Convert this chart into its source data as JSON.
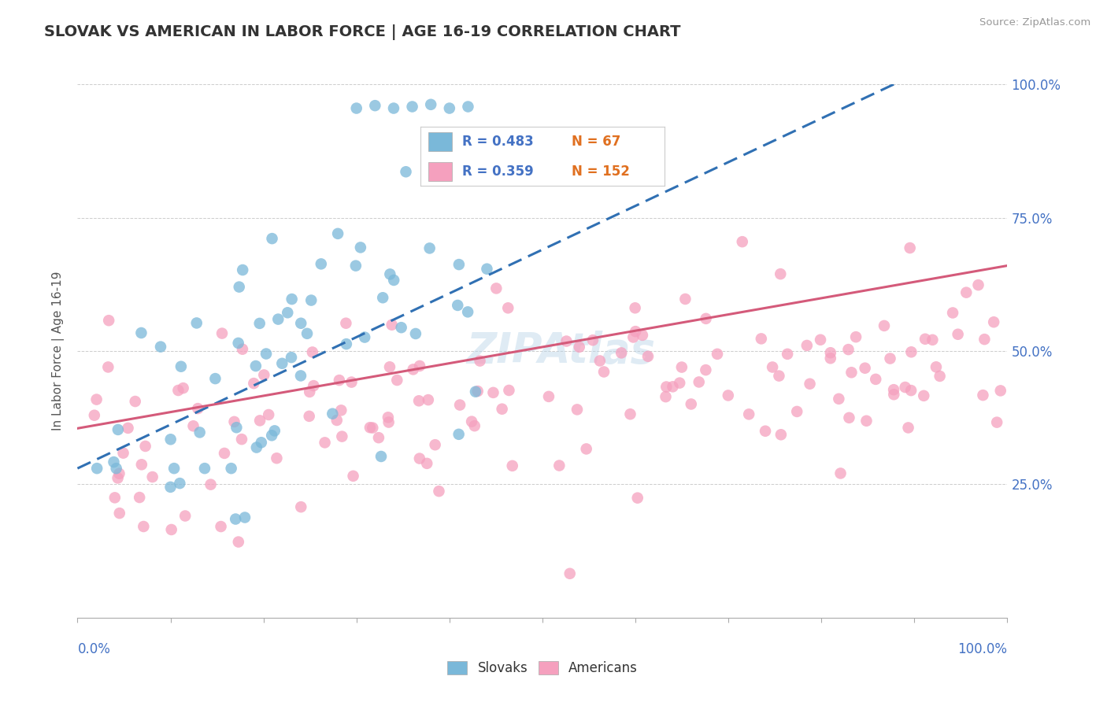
{
  "title": "SLOVAK VS AMERICAN IN LABOR FORCE | AGE 16-19 CORRELATION CHART",
  "source": "Source: ZipAtlas.com",
  "ylabel": "In Labor Force | Age 16-19",
  "xlim": [
    0.0,
    1.0
  ],
  "ylim": [
    0.0,
    1.0
  ],
  "watermark": "ZIPAtlas",
  "slovak_R": 0.483,
  "slovak_N": 67,
  "american_R": 0.359,
  "american_N": 152,
  "slovak_color": "#7ab8d9",
  "american_color": "#f5a0be",
  "slovak_line_color": "#3070b3",
  "american_line_color": "#d45a7a",
  "background_color": "#ffffff",
  "title_color": "#333333",
  "axis_label_color": "#555555",
  "tick_label_color": "#4472c4",
  "grid_color": "#c8c8c8",
  "legend_label_color": "#333333"
}
